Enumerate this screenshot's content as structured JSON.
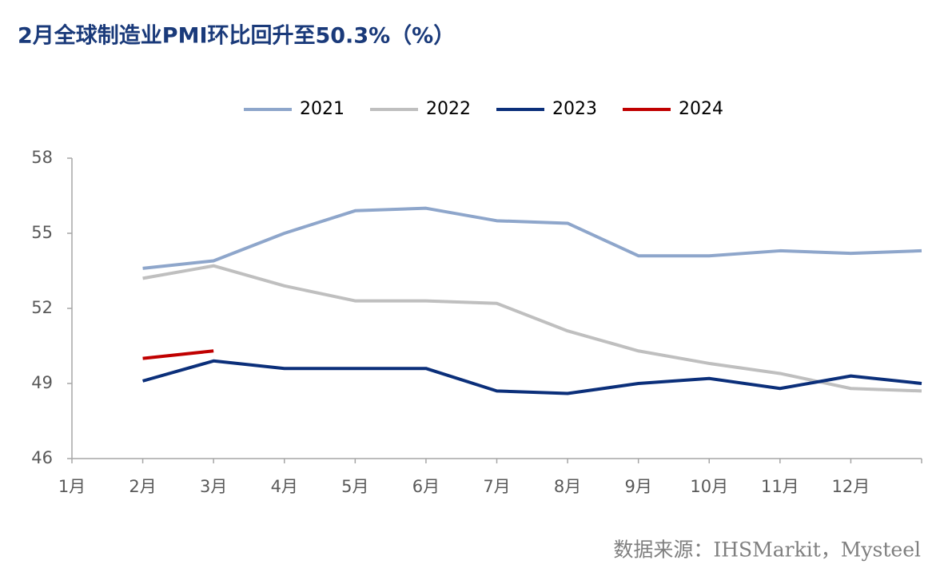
{
  "chart_data": {
    "type": "line",
    "title": "2月全球制造业PMI环比回升至50.3%（%）",
    "note": "数据来源：IHSMarkit，Mysteel",
    "categories": [
      "1月",
      "2月",
      "3月",
      "4月",
      "5月",
      "6月",
      "7月",
      "8月",
      "9月",
      "10月",
      "11月",
      "12月",
      null
    ],
    "series": [
      {
        "name": "2021",
        "color": "#8ea6cb",
        "values": [
          null,
          53.6,
          53.9,
          55.0,
          55.9,
          56.0,
          55.5,
          55.4,
          54.1,
          54.1,
          54.3,
          54.2,
          54.3
        ]
      },
      {
        "name": "2022",
        "color": "#bfbfbf",
        "values": [
          null,
          53.2,
          53.7,
          52.9,
          52.3,
          52.3,
          52.2,
          51.1,
          50.3,
          49.8,
          49.4,
          48.8,
          48.7
        ]
      },
      {
        "name": "2023",
        "color": "#0b2f7a",
        "values": [
          null,
          49.1,
          49.9,
          49.6,
          49.6,
          49.6,
          48.7,
          48.6,
          49.0,
          49.2,
          48.8,
          49.3,
          49.0
        ]
      },
      {
        "name": "2024",
        "color": "#c00000",
        "values": [
          null,
          50.0,
          50.3,
          null,
          null,
          null,
          null,
          null,
          null,
          null,
          null,
          null,
          null
        ]
      }
    ],
    "ylim": [
      46,
      58
    ],
    "yticks": [
      46,
      49,
      52,
      55,
      58
    ],
    "grid": false,
    "legend": "top"
  }
}
